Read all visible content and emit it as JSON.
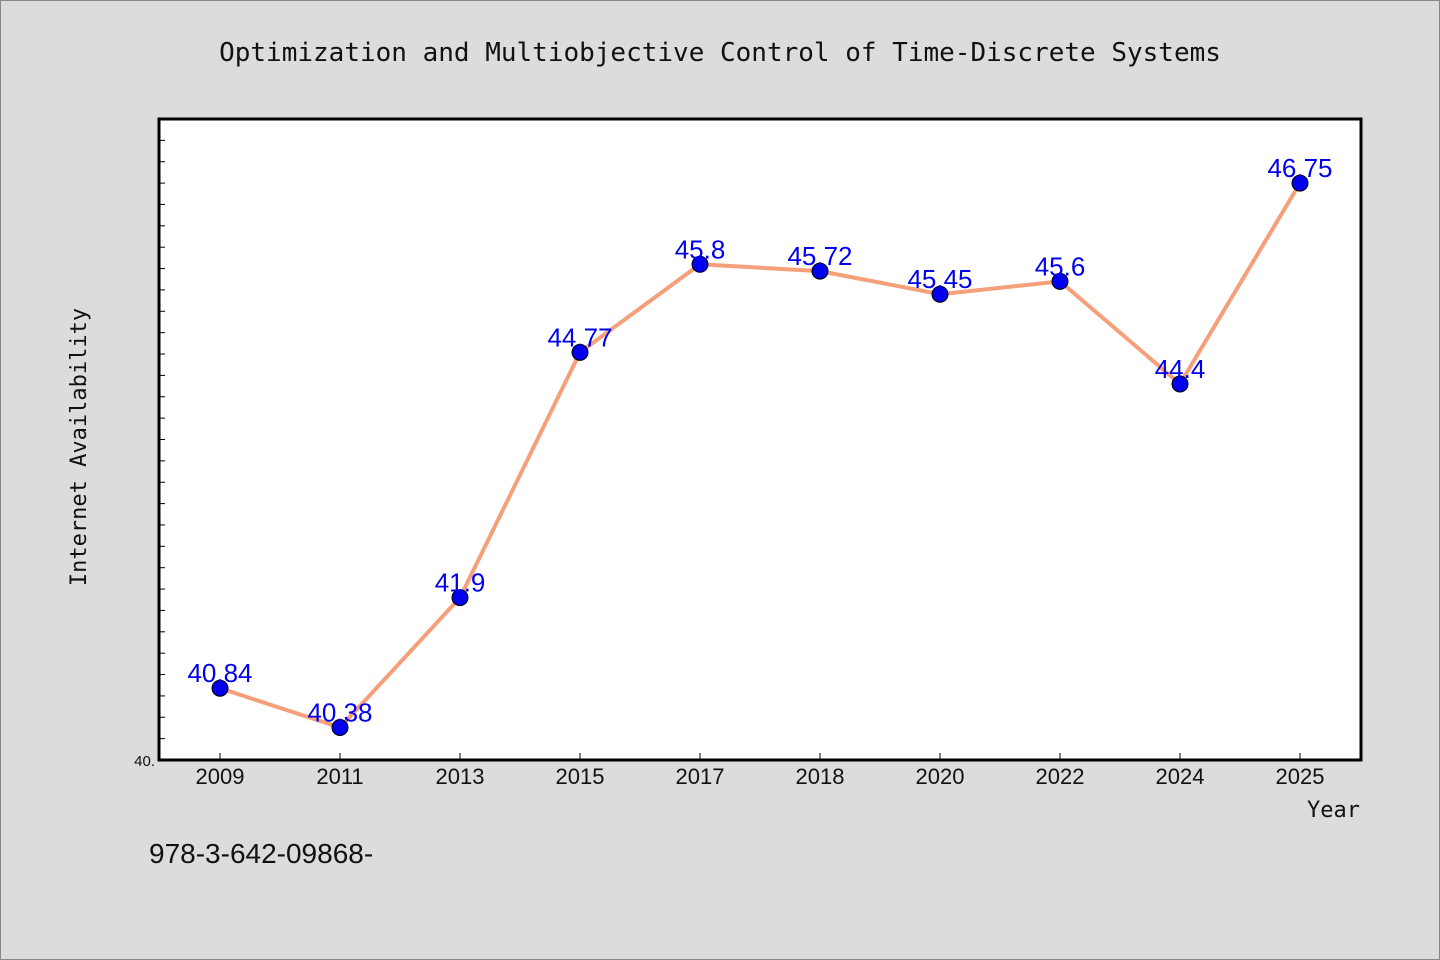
{
  "chart_data": {
    "type": "line",
    "title": "Optimization and Multiobjective Control of Time-Discrete Systems",
    "xlabel": "Year",
    "ylabel": "Internet Availability",
    "categories": [
      "2009",
      "2011",
      "2013",
      "2015",
      "2017",
      "2018",
      "2020",
      "2022",
      "2024",
      "2025"
    ],
    "series": [
      {
        "values": [
          40.84,
          40.38,
          41.9,
          44.77,
          45.8,
          45.72,
          45.45,
          45.6,
          44.4,
          46.75
        ],
        "labels": [
          "40.84",
          "40.38",
          "41.9",
          "44.77",
          "45.8",
          "45.72",
          "45.45",
          "45.6",
          "44.4",
          "46.75"
        ]
      }
    ],
    "ylim": [
      40.0,
      47.5
    ],
    "yticks_labeled": [
      "40."
    ],
    "grid": false,
    "line_color": "#f5a07a",
    "marker_color": "#0000ee",
    "label_color": "#0000ee"
  },
  "footer_text": "978-3-642-09868-"
}
